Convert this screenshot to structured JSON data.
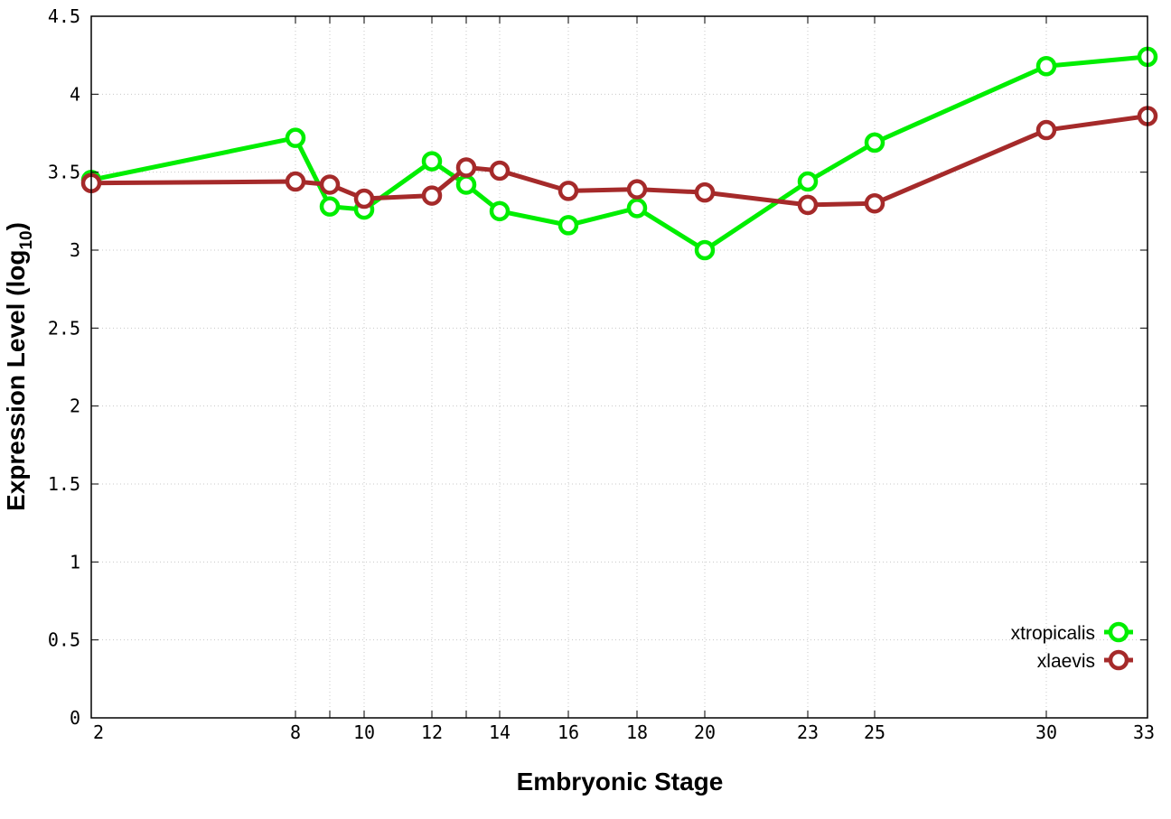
{
  "chart_data": {
    "type": "line",
    "title": "",
    "xlabel": "Embryonic Stage",
    "ylabel_main": "Expression Level (log",
    "ylabel_sub": "10",
    "ylabel_close": ")",
    "x_scale": "categorical (stage labels, nonuniform spacing)",
    "x_ticks": [
      "2",
      "8",
      "9",
      "10",
      "12",
      "13",
      "14",
      "16",
      "18",
      "20",
      "23",
      "25",
      "30",
      "33"
    ],
    "x_tick_labels_shown": [
      "2",
      "8",
      "10",
      "12",
      "14",
      "16",
      "18",
      "20",
      "23",
      "25",
      "30",
      "33"
    ],
    "y_ticks": [
      "0",
      "0.5",
      "1",
      "1.5",
      "2",
      "2.5",
      "3",
      "3.5",
      "4",
      "4.5"
    ],
    "ylim": [
      0,
      4.5
    ],
    "grid": true,
    "legend_position": "bottom-right",
    "series": [
      {
        "name": "xtropicalis",
        "color": "#00ee00",
        "x": [
          "2",
          "8",
          "9",
          "10",
          "12",
          "13",
          "14",
          "16",
          "18",
          "20",
          "23",
          "25",
          "30",
          "33"
        ],
        "values": [
          3.45,
          3.72,
          3.28,
          3.26,
          3.57,
          3.42,
          3.25,
          3.16,
          3.27,
          3.0,
          3.44,
          3.69,
          4.18,
          4.24
        ]
      },
      {
        "name": "xlaevis",
        "color": "#a52a2a",
        "x": [
          "2",
          "8",
          "9",
          "10",
          "12",
          "13",
          "14",
          "16",
          "18",
          "20",
          "23",
          "25",
          "30",
          "33"
        ],
        "values": [
          3.43,
          3.44,
          3.42,
          3.33,
          3.35,
          3.53,
          3.51,
          3.38,
          3.39,
          3.37,
          3.29,
          3.3,
          3.77,
          3.86
        ]
      }
    ]
  }
}
